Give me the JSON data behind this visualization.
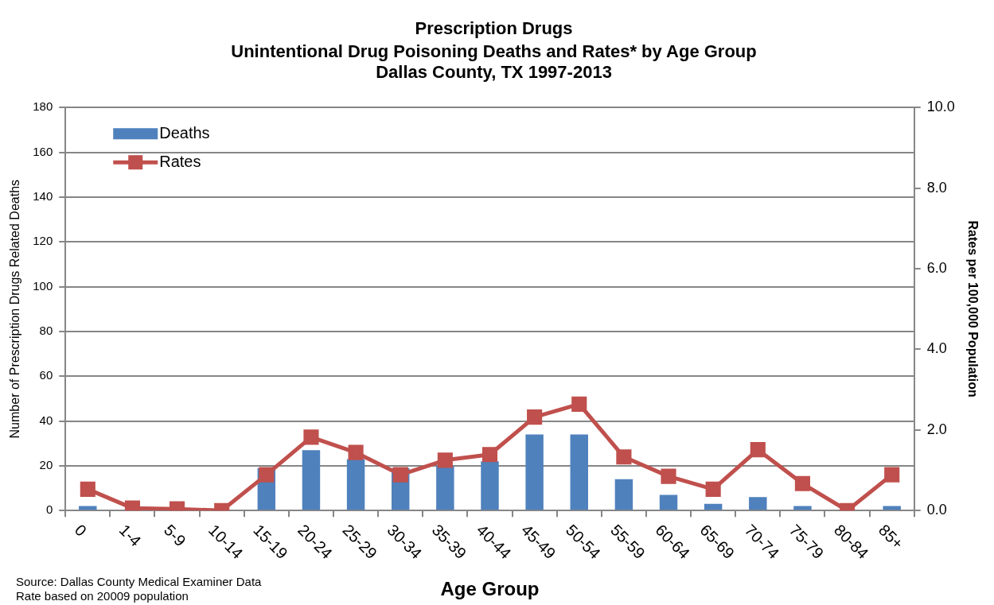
{
  "chart_data": {
    "type": "bar",
    "title": "Prescription Drugs",
    "subtitle": "Unintentional Drug Poisoning Deaths and Rates* by Age Group\nDallas County, TX 1997-2013",
    "xlabel": "Age Group",
    "ylabel": "Number of Prescription Drugs Related Deaths",
    "y2label": "Rates per 100,000 Population",
    "categories": [
      "0",
      "1-4",
      "5-9",
      "10-14",
      "15-19",
      "20-24",
      "25-29",
      "30-34",
      "35-39",
      "40-44",
      "45-49",
      "50-54",
      "55-59",
      "60-64",
      "65-69",
      "70-74",
      "75-79",
      "80-84",
      "85+"
    ],
    "series": [
      {
        "name": "Deaths",
        "color": "#4f81bd",
        "values": [
          2,
          0,
          0,
          0,
          19,
          27,
          23,
          19,
          20,
          22,
          34,
          34,
          14,
          7,
          3,
          6,
          2,
          0,
          2
        ]
      },
      {
        "name": "Rates",
        "type": "line",
        "axis": "y2",
        "color": "#c0504d",
        "marker": "square",
        "values": [
          0.53,
          0.06,
          0.04,
          0,
          0.89,
          1.82,
          1.44,
          0.89,
          1.25,
          1.39,
          2.32,
          2.64,
          1.33,
          0.85,
          0.53,
          1.51,
          0.67,
          0,
          0.89
        ]
      }
    ],
    "ylim": [
      0,
      180
    ],
    "yticks": [
      0,
      20,
      40,
      60,
      80,
      100,
      120,
      140,
      160,
      180
    ],
    "y2lim": [
      0,
      10
    ],
    "y2ticks": [
      {
        "value": 0,
        "label": "0.0"
      },
      {
        "value": 2,
        "label": "2.0"
      },
      {
        "value": 4,
        "label": "4.0"
      },
      {
        "value": 6,
        "label": "6.0"
      },
      {
        "value": 8,
        "label": "8.0"
      },
      {
        "value": 10,
        "label": "10.0"
      }
    ],
    "grid": "y",
    "legend": "top left",
    "annotations": [
      "Source: Dallas County Medical Examiner Data",
      "Rate based on 20009 population"
    ]
  }
}
